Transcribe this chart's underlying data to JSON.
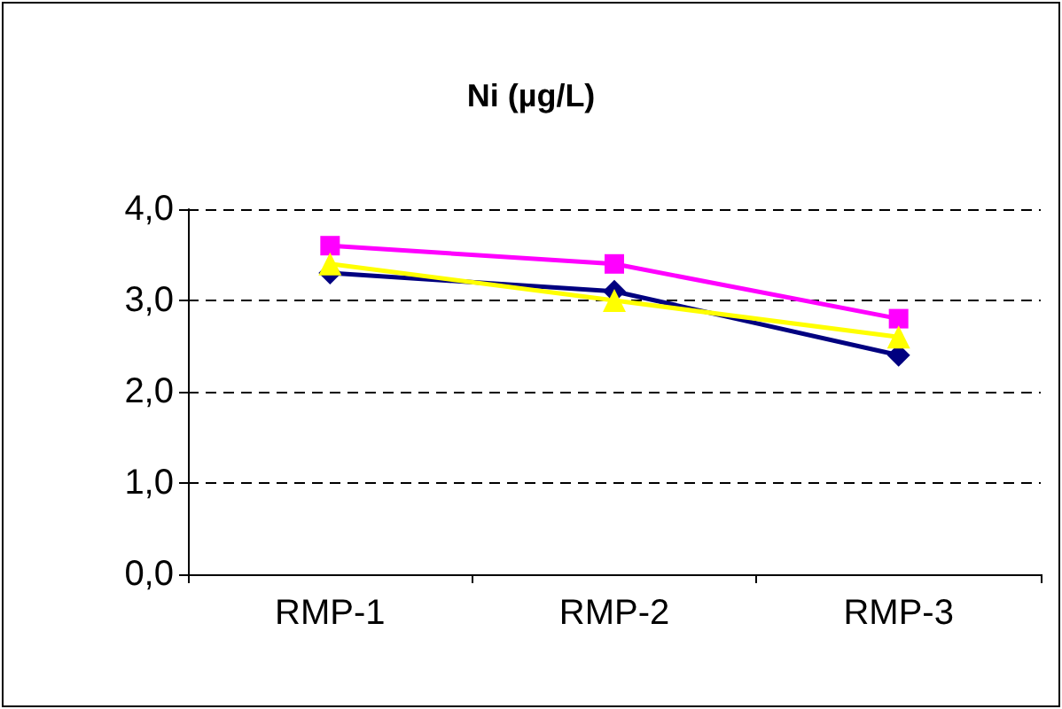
{
  "chart_data": {
    "type": "line",
    "title": "Ni (µg/L)",
    "categories": [
      "RMP-1",
      "RMP-2",
      "RMP-3"
    ],
    "series": [
      {
        "color": "#000080",
        "values": [
          3.3,
          3.1,
          2.4
        ],
        "marker": "diamond"
      },
      {
        "color": "#ff00ff",
        "values": [
          3.6,
          3.4,
          2.8
        ],
        "marker": "square"
      },
      {
        "color": "#ffff00",
        "values": [
          3.4,
          3.0,
          2.6
        ],
        "marker": "triangle"
      }
    ],
    "ylim": [
      0,
      4
    ],
    "yticks": [
      {
        "value": 0,
        "label": "0,0"
      },
      {
        "value": 1,
        "label": "1,0"
      },
      {
        "value": 2,
        "label": "2,0"
      },
      {
        "value": 3,
        "label": "3,0"
      },
      {
        "value": 4,
        "label": "4,0"
      }
    ],
    "grid": "y"
  }
}
